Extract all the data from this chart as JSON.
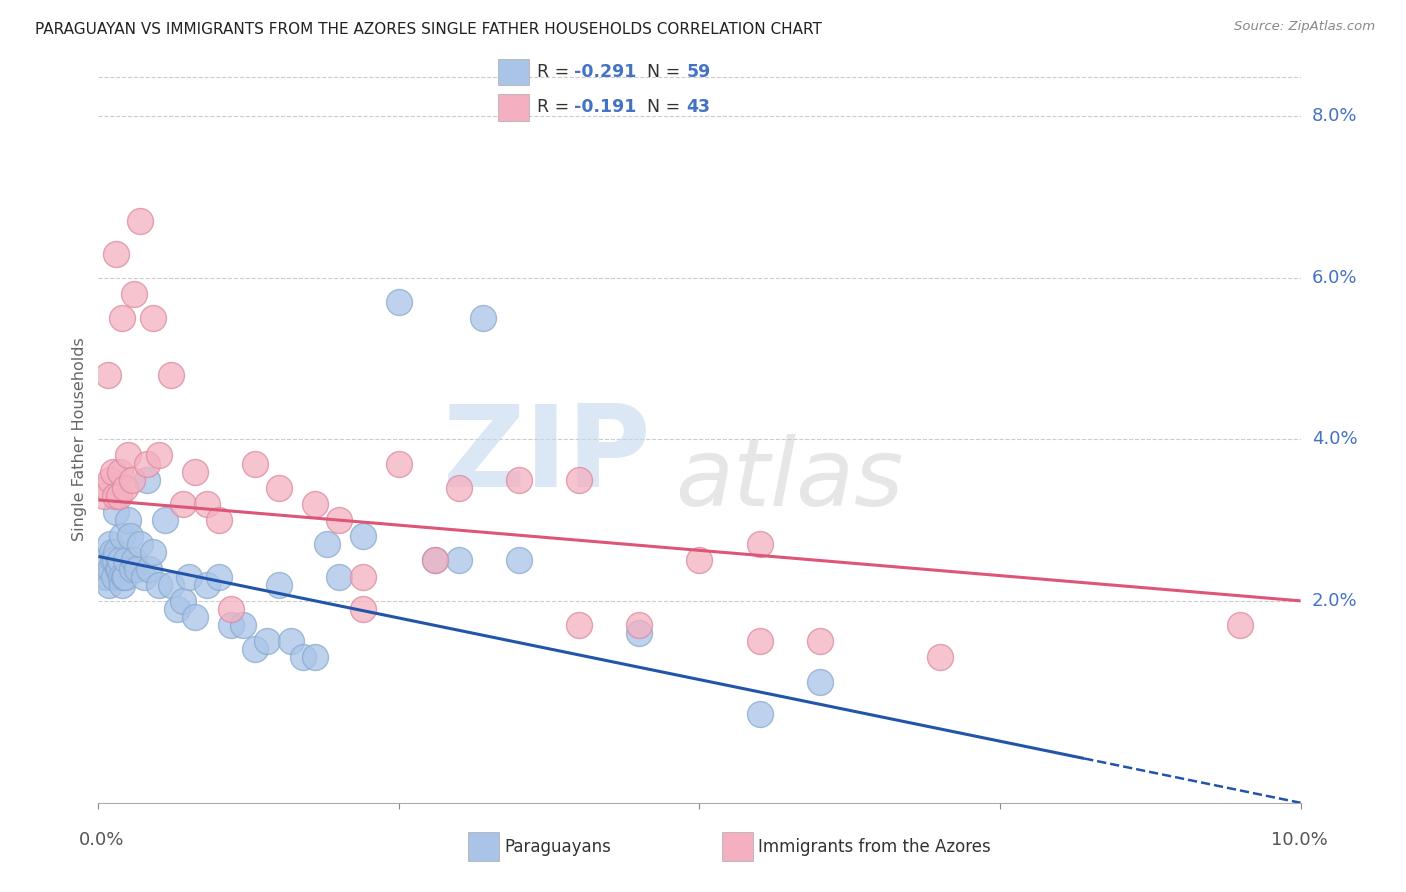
{
  "title": "PARAGUAYAN VS IMMIGRANTS FROM THE AZORES SINGLE FATHER HOUSEHOLDS CORRELATION CHART",
  "source": "Source: ZipAtlas.com",
  "ylabel": "Single Father Households",
  "legend_label1": "Paraguayans",
  "legend_label2": "Immigrants from the Azores",
  "r1": "-0.291",
  "n1": "59",
  "r2": "-0.191",
  "n2": "43",
  "color_blue": "#aac4e8",
  "color_blue_edge": "#88aacc",
  "color_pink": "#f4b0c0",
  "color_pink_edge": "#dd88a0",
  "line_blue": "#2255aa",
  "line_pink": "#dd5577",
  "accent_color": "#4472c4",
  "xlim": [
    0.0,
    10.0
  ],
  "ylim_bottom": -0.5,
  "ylim_top": 8.5,
  "ytick_values": [
    2.0,
    4.0,
    6.0,
    8.0
  ],
  "xtick_values": [
    0.0,
    2.5,
    5.0,
    7.5,
    10.0
  ],
  "blue_x": [
    0.05,
    0.07,
    0.08,
    0.09,
    0.1,
    0.1,
    0.11,
    0.12,
    0.13,
    0.14,
    0.15,
    0.15,
    0.16,
    0.17,
    0.18,
    0.19,
    0.2,
    0.2,
    0.21,
    0.22,
    0.23,
    0.25,
    0.26,
    0.28,
    0.3,
    0.32,
    0.35,
    0.38,
    0.4,
    0.42,
    0.45,
    0.5,
    0.55,
    0.6,
    0.65,
    0.7,
    0.75,
    0.8,
    0.9,
    1.0,
    1.1,
    1.2,
    1.3,
    1.4,
    1.5,
    1.6,
    1.7,
    1.8,
    1.9,
    2.0,
    2.2,
    2.5,
    2.8,
    3.0,
    3.2,
    3.5,
    4.5,
    5.5,
    6.0
  ],
  "blue_y": [
    2.3,
    2.5,
    2.3,
    2.2,
    2.7,
    2.4,
    2.6,
    2.5,
    2.3,
    2.5,
    2.6,
    3.1,
    2.4,
    2.4,
    2.5,
    2.3,
    2.2,
    2.8,
    2.3,
    2.3,
    2.5,
    3.0,
    2.8,
    2.4,
    2.5,
    2.4,
    2.7,
    2.3,
    3.5,
    2.4,
    2.6,
    2.2,
    3.0,
    2.2,
    1.9,
    2.0,
    2.3,
    1.8,
    2.2,
    2.3,
    1.7,
    1.7,
    1.4,
    1.5,
    2.2,
    1.5,
    1.3,
    1.3,
    2.7,
    2.3,
    2.8,
    5.7,
    2.5,
    2.5,
    5.5,
    2.5,
    1.6,
    0.6,
    1.0
  ],
  "pink_x": [
    0.05,
    0.07,
    0.08,
    0.1,
    0.12,
    0.14,
    0.15,
    0.17,
    0.18,
    0.2,
    0.22,
    0.25,
    0.28,
    0.3,
    0.35,
    0.4,
    0.45,
    0.5,
    0.6,
    0.7,
    0.8,
    0.9,
    1.0,
    1.1,
    1.3,
    1.5,
    1.8,
    2.0,
    2.2,
    2.5,
    3.0,
    4.0,
    4.5,
    5.0,
    5.5,
    6.0,
    7.0,
    9.5,
    3.5,
    2.8,
    2.2,
    4.0,
    5.5
  ],
  "pink_y": [
    3.3,
    3.4,
    4.8,
    3.5,
    3.6,
    3.3,
    6.3,
    3.3,
    3.6,
    5.5,
    3.4,
    3.8,
    3.5,
    5.8,
    6.7,
    3.7,
    5.5,
    3.8,
    4.8,
    3.2,
    3.6,
    3.2,
    3.0,
    1.9,
    3.7,
    3.4,
    3.2,
    3.0,
    1.9,
    3.7,
    3.4,
    3.5,
    1.7,
    2.5,
    2.7,
    1.5,
    1.3,
    1.7,
    3.5,
    2.5,
    2.3,
    1.7,
    1.5
  ],
  "blue_line_x0": 0.0,
  "blue_line_y0": 2.55,
  "blue_line_x1": 10.0,
  "blue_line_y1": -0.5,
  "blue_solid_end_x": 8.2,
  "pink_line_x0": 0.0,
  "pink_line_y0": 3.25,
  "pink_line_x1": 10.0,
  "pink_line_y1": 2.0,
  "grid_color": "#cccccc",
  "border_color": "#cccccc",
  "watermark_zip_color": "#c5d8f0",
  "watermark_atlas_color": "#c8c8c8"
}
